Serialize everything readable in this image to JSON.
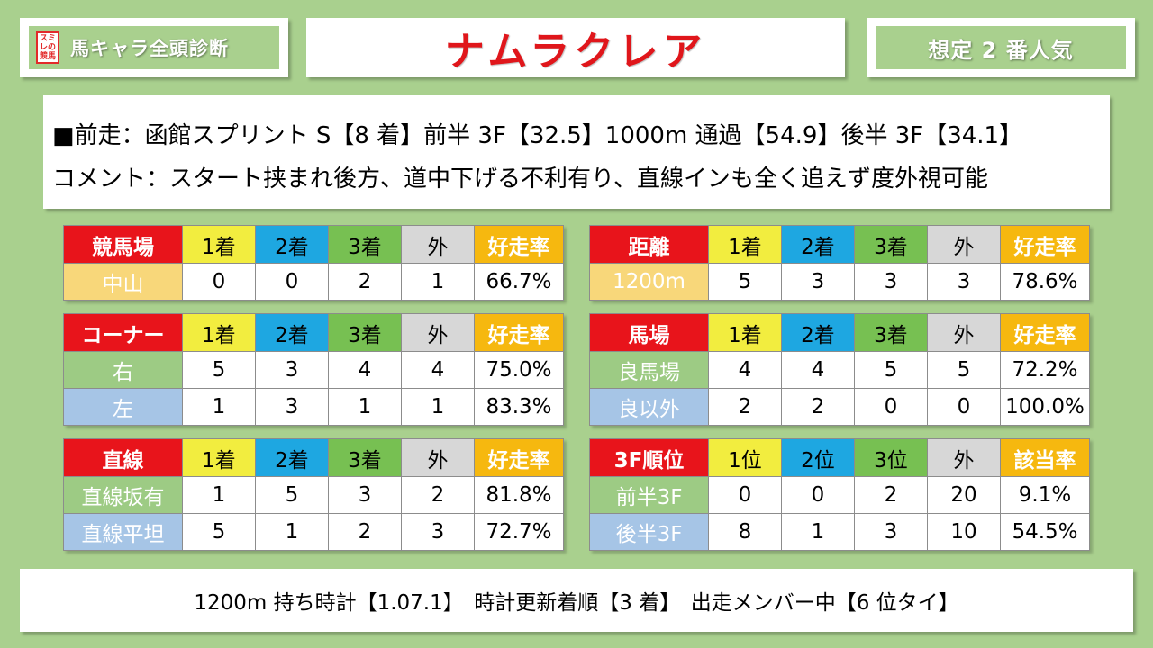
{
  "header": {
    "logo_text": "スミレの競馬",
    "left_label": "馬キャラ全頭診断",
    "horse_name": "ナムラクレア",
    "popularity": "想定 2 番人気"
  },
  "last_race": {
    "line1": "■前走：函館スプリント S【8 着】前半 3F【32.5】1000m 通過【54.9】後半 3F【34.1】",
    "line2": "コメント：スタート挟まれ後方、道中下げる不利有り、直線インも全く追えず度外視可能"
  },
  "tables": {
    "course": {
      "headers": [
        "競馬場",
        "1着",
        "2着",
        "3着",
        "外",
        "好走率"
      ],
      "rows": [
        [
          "中山",
          "0",
          "0",
          "2",
          "1",
          "66.7%"
        ]
      ]
    },
    "distance": {
      "headers": [
        "距離",
        "1着",
        "2着",
        "3着",
        "外",
        "好走率"
      ],
      "rows": [
        [
          "1200m",
          "5",
          "3",
          "3",
          "3",
          "78.6%"
        ]
      ]
    },
    "corner": {
      "headers": [
        "コーナー",
        "1着",
        "2着",
        "3着",
        "外",
        "好走率"
      ],
      "rows": [
        [
          "右",
          "5",
          "3",
          "4",
          "4",
          "75.0%"
        ],
        [
          "左",
          "1",
          "3",
          "1",
          "1",
          "83.3%"
        ]
      ]
    },
    "going": {
      "headers": [
        "馬場",
        "1着",
        "2着",
        "3着",
        "外",
        "好走率"
      ],
      "rows": [
        [
          "良馬場",
          "4",
          "4",
          "5",
          "5",
          "72.2%"
        ],
        [
          "良以外",
          "2",
          "2",
          "0",
          "0",
          "100.0%"
        ]
      ]
    },
    "straight": {
      "headers": [
        "直線",
        "1着",
        "2着",
        "3着",
        "外",
        "好走率"
      ],
      "rows": [
        [
          "直線坂有",
          "1",
          "5",
          "3",
          "2",
          "81.8%"
        ],
        [
          "直線平坦",
          "5",
          "1",
          "2",
          "3",
          "72.7%"
        ]
      ]
    },
    "rank3f": {
      "headers": [
        "3F順位",
        "1位",
        "2位",
        "3位",
        "外",
        "該当率"
      ],
      "rows": [
        [
          "前半3F",
          "0",
          "0",
          "2",
          "20",
          "9.1%"
        ],
        [
          "後半3F",
          "8",
          "1",
          "3",
          "10",
          "54.5%"
        ]
      ]
    }
  },
  "footer": {
    "text": "1200m 持ち時計【1.07.1】　時計更新着順【3 着】　出走メンバー中【6 位タイ】"
  },
  "colors": {
    "background": "#a9d08e",
    "header_red": "#e8141b",
    "first": "#f2ed3f",
    "second": "#1ea7e1",
    "third": "#77c052",
    "other": "#d7d7d7",
    "rate": "#f6b80f",
    "horse_name": "#e0161b"
  }
}
